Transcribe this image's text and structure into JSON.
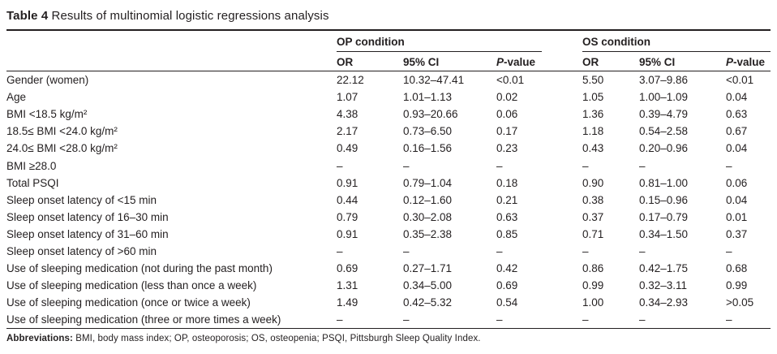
{
  "page": {
    "title_bold": "Table 4",
    "title_rest": " Results of multinomial logistic regressions analysis"
  },
  "table": {
    "group_op": "OP condition",
    "group_os": "OS condition",
    "col_or": "OR",
    "col_ci": "95% CI",
    "col_p_italic": "P",
    "col_p_rest": "-value",
    "rows": [
      {
        "label": "Gender (women)",
        "op_or": "22.12",
        "op_ci": "10.32–47.41",
        "op_p": "<0.01",
        "os_or": "5.50",
        "os_ci": "3.07–9.86",
        "os_p": "<0.01"
      },
      {
        "label": "Age",
        "op_or": "1.07",
        "op_ci": "1.01–1.13",
        "op_p": "0.02",
        "os_or": "1.05",
        "os_ci": "1.00–1.09",
        "os_p": "0.04"
      },
      {
        "label": "BMI <18.5 kg/m²",
        "op_or": "4.38",
        "op_ci": "0.93–20.66",
        "op_p": "0.06",
        "os_or": "1.36",
        "os_ci": "0.39–4.79",
        "os_p": "0.63"
      },
      {
        "label": "18.5≤ BMI <24.0 kg/m²",
        "op_or": "2.17",
        "op_ci": "0.73–6.50",
        "op_p": "0.17",
        "os_or": "1.18",
        "os_ci": "0.54–2.58",
        "os_p": "0.67"
      },
      {
        "label": "24.0≤ BMI <28.0 kg/m²",
        "op_or": "0.49",
        "op_ci": "0.16–1.56",
        "op_p": "0.23",
        "os_or": "0.43",
        "os_ci": "0.20–0.96",
        "os_p": "0.04"
      },
      {
        "label": "BMI ≥28.0",
        "op_or": "–",
        "op_ci": "–",
        "op_p": "–",
        "os_or": "–",
        "os_ci": "–",
        "os_p": "–"
      },
      {
        "label": "Total PSQI",
        "op_or": "0.91",
        "op_ci": "0.79–1.04",
        "op_p": "0.18",
        "os_or": "0.90",
        "os_ci": "0.81–1.00",
        "os_p": "0.06"
      },
      {
        "label": "Sleep onset latency of <15 min",
        "op_or": "0.44",
        "op_ci": "0.12–1.60",
        "op_p": "0.21",
        "os_or": "0.38",
        "os_ci": "0.15–0.96",
        "os_p": "0.04"
      },
      {
        "label": "Sleep onset latency of 16–30 min",
        "op_or": "0.79",
        "op_ci": "0.30–2.08",
        "op_p": "0.63",
        "os_or": "0.37",
        "os_ci": "0.17–0.79",
        "os_p": "0.01"
      },
      {
        "label": "Sleep onset latency of 31–60 min",
        "op_or": "0.91",
        "op_ci": "0.35–2.38",
        "op_p": "0.85",
        "os_or": "0.71",
        "os_ci": "0.34–1.50",
        "os_p": "0.37"
      },
      {
        "label": "Sleep onset latency of >60 min",
        "op_or": "–",
        "op_ci": "–",
        "op_p": "–",
        "os_or": "–",
        "os_ci": "–",
        "os_p": "–"
      },
      {
        "label": "Use of sleeping medication (not during the past month)",
        "op_or": "0.69",
        "op_ci": "0.27–1.71",
        "op_p": "0.42",
        "os_or": "0.86",
        "os_ci": "0.42–1.75",
        "os_p": "0.68"
      },
      {
        "label": "Use of sleeping medication (less than once a week)",
        "op_or": "1.31",
        "op_ci": "0.34–5.00",
        "op_p": "0.69",
        "os_or": "0.99",
        "os_ci": "0.32–3.11",
        "os_p": "0.99"
      },
      {
        "label": "Use of sleeping medication (once or twice a week)",
        "op_or": "1.49",
        "op_ci": "0.42–5.32",
        "op_p": "0.54",
        "os_or": "1.00",
        "os_ci": "0.34–2.93",
        "os_p": ">0.05"
      },
      {
        "label": "Use of sleeping medication (three or more times a week)",
        "op_or": "–",
        "op_ci": "–",
        "op_p": "–",
        "os_or": "–",
        "os_ci": "–",
        "os_p": "–"
      }
    ],
    "footnote_bold": "Abbreviations:",
    "footnote_rest": " BMI, body mass index; OP, osteoporosis; OS, osteopenia; PSQI, Pittsburgh Sleep Quality Index."
  },
  "colors": {
    "text": "#231f20",
    "rule": "#231f20",
    "background": "#ffffff"
  }
}
